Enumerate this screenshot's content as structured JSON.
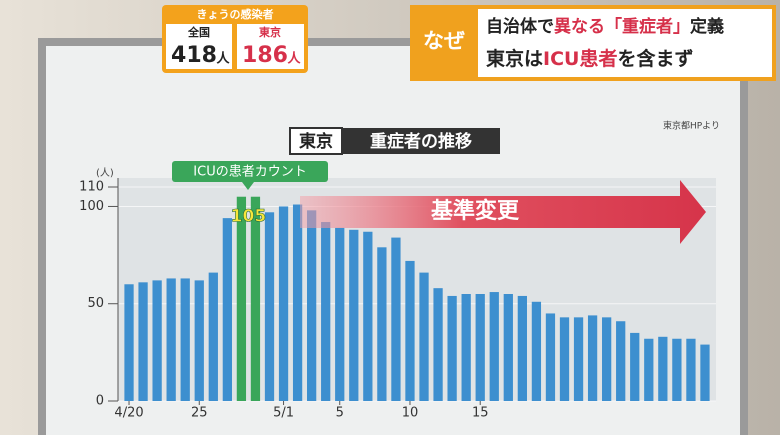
{
  "header": {
    "today_label": "きょうの感染者",
    "national_label": "全国",
    "national_value": "418",
    "national_unit": "人",
    "tokyo_label": "東京",
    "tokyo_value": "186",
    "tokyo_unit": "人",
    "why": "なぜ",
    "headline_1": [
      "自治体で",
      "異なる「重症者」",
      "定義"
    ],
    "headline_2": [
      "東京は",
      "ICU患者",
      "を含まず"
    ]
  },
  "chart_data": {
    "type": "bar",
    "title_tag": "東京",
    "title": "重症者の推移",
    "source": "東京都HPより",
    "y_unit": "(人)",
    "categories": [
      "4/20",
      null,
      null,
      null,
      null,
      "25",
      null,
      null,
      null,
      null,
      null,
      "5/1",
      null,
      null,
      null,
      "5",
      null,
      null,
      null,
      null,
      "10",
      null,
      null,
      null,
      null,
      "15",
      null,
      null,
      null,
      null,
      null,
      null,
      null,
      null,
      null,
      null,
      null,
      null,
      null,
      null,
      null,
      null
    ],
    "values": [
      60,
      61,
      62,
      63,
      63,
      62,
      66,
      94,
      105,
      105,
      97,
      100,
      101,
      98,
      92,
      89,
      88,
      87,
      79,
      84,
      72,
      66,
      58,
      54,
      55,
      55,
      56,
      55,
      54,
      51,
      45,
      43,
      43,
      44,
      43,
      41,
      35,
      32,
      33,
      32,
      32,
      29
    ],
    "color": "#3d8fcf",
    "highlight_color": "#3aa65a",
    "highlight": [
      8,
      9
    ],
    "annotation_icu": "ICUの患者カウント",
    "annotation_change": "基準変更",
    "ylim": [
      0,
      110
    ],
    "yticks": [
      0,
      50,
      100,
      110
    ],
    "grid": true
  }
}
